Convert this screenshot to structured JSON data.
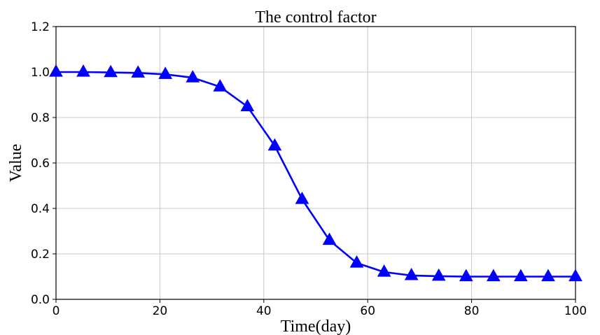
{
  "chart_data": {
    "type": "line",
    "title": "The control factor",
    "xlabel": "Time(day)",
    "ylabel": "Value",
    "xlim": [
      0,
      100
    ],
    "ylim": [
      0,
      1.2
    ],
    "xticks": [
      0,
      20,
      40,
      60,
      80,
      100
    ],
    "xtick_labels": [
      "0",
      "20",
      "40",
      "60",
      "80",
      "100"
    ],
    "yticks": [
      0.0,
      0.2,
      0.4,
      0.6,
      0.8,
      1.0,
      1.2
    ],
    "ytick_labels": [
      "0.0",
      "0.2",
      "0.4",
      "0.6",
      "0.8",
      "1.0",
      "1.2"
    ],
    "grid": true,
    "series": [
      {
        "color": "#0000ff",
        "marker": "triangle",
        "x": [
          0,
          5.26,
          10.53,
          15.79,
          21.05,
          26.32,
          31.58,
          36.84,
          42.11,
          47.37,
          52.63,
          57.89,
          63.16,
          68.42,
          73.68,
          78.95,
          84.21,
          89.47,
          94.74,
          100
        ],
        "y": [
          1.0,
          1.0,
          0.998,
          0.996,
          0.99,
          0.975,
          0.935,
          0.848,
          0.675,
          0.44,
          0.26,
          0.16,
          0.12,
          0.105,
          0.102,
          0.1,
          0.1,
          0.1,
          0.1,
          0.1
        ]
      }
    ]
  }
}
